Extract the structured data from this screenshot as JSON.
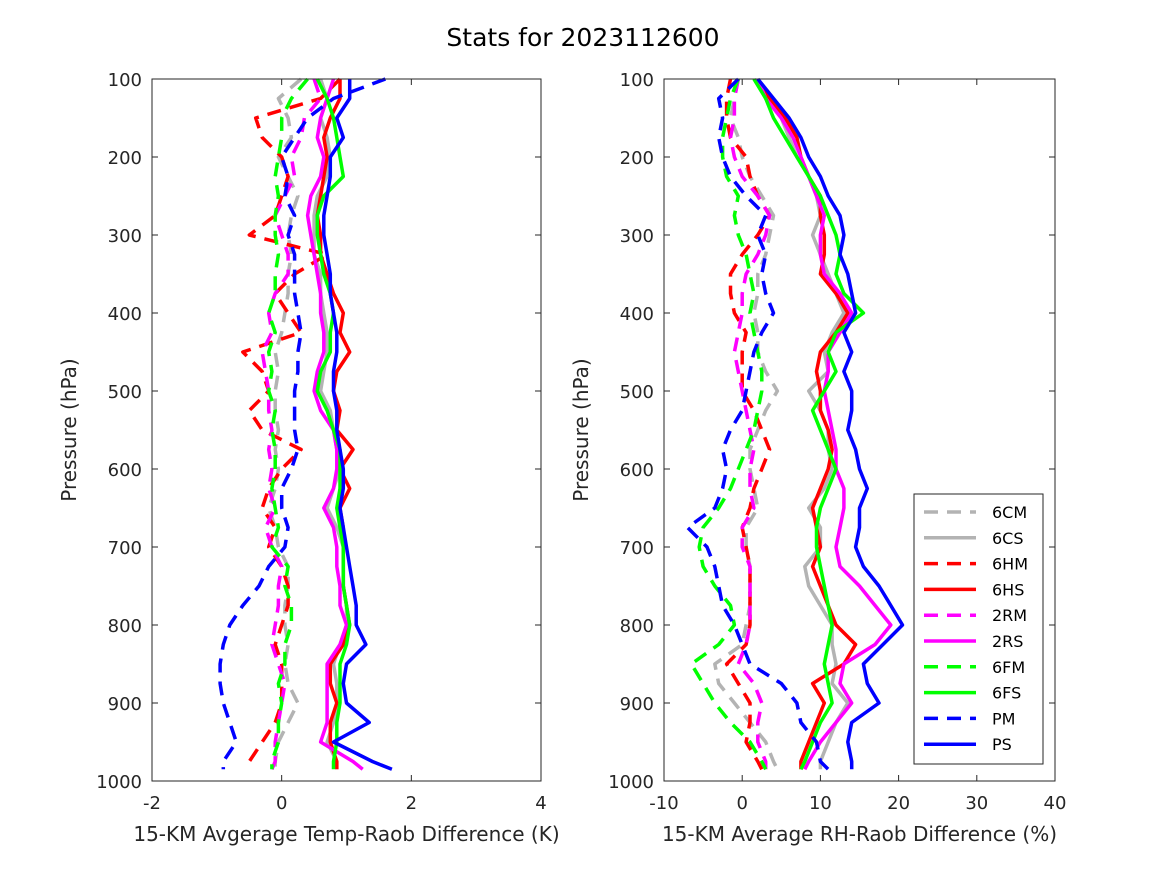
{
  "title": "Stats for 2023112600",
  "colors": {
    "6C": "#b3b3b3",
    "6H": "#ff0000",
    "2R": "#ff00ff",
    "6F": "#00ff00",
    "P": "#0000ff"
  },
  "legend": [
    {
      "label": "6CM",
      "color": "#b3b3b3",
      "style": "dashed"
    },
    {
      "label": "6CS",
      "color": "#b3b3b3",
      "style": "solid"
    },
    {
      "label": "6HM",
      "color": "#ff0000",
      "style": "dashed"
    },
    {
      "label": "6HS",
      "color": "#ff0000",
      "style": "solid"
    },
    {
      "label": "2RM",
      "color": "#ff00ff",
      "style": "dashed"
    },
    {
      "label": "2RS",
      "color": "#ff00ff",
      "style": "solid"
    },
    {
      "label": "6FM",
      "color": "#00ff00",
      "style": "dashed"
    },
    {
      "label": "6FS",
      "color": "#00ff00",
      "style": "solid"
    },
    {
      "label": "PM",
      "color": "#0000ff",
      "style": "dashed"
    },
    {
      "label": "PS",
      "color": "#0000ff",
      "style": "solid"
    }
  ],
  "chart_data": [
    {
      "type": "line",
      "ylabel": "Pressure (hPa)",
      "xlabel": "15-KM Avgerage Temp-Raob Difference (K)",
      "xlim": [
        -2,
        4
      ],
      "ylim": [
        100,
        1000
      ],
      "y_reversed": true,
      "xticks": [
        "-2",
        "0",
        "2",
        "4"
      ],
      "yticks": [
        "100",
        "200",
        "300",
        "400",
        "500",
        "600",
        "700",
        "800",
        "900",
        "1000"
      ],
      "pressure": [
        100,
        125,
        150,
        175,
        200,
        225,
        250,
        275,
        300,
        325,
        350,
        375,
        400,
        425,
        450,
        475,
        500,
        525,
        550,
        575,
        600,
        625,
        650,
        675,
        700,
        725,
        750,
        775,
        800,
        825,
        850,
        875,
        900,
        925,
        950,
        975,
        985
      ],
      "series": [
        {
          "name": "6CM",
          "values": [
            0.3,
            -0.05,
            0.1,
            0.15,
            -0.05,
            0.1,
            0.25,
            0.15,
            0.1,
            0.15,
            0.1,
            0.1,
            0.05,
            0.0,
            -0.1,
            -0.05,
            -0.1,
            -0.1,
            -0.05,
            -0.1,
            -0.05,
            -0.1,
            -0.2,
            -0.1,
            -0.05,
            0.1,
            0.1,
            0.05,
            0.05,
            0.1,
            0.05,
            0.1,
            0.25,
            0.1,
            -0.05,
            -0.1,
            -0.1
          ]
        },
        {
          "name": "6CS",
          "values": [
            0.6,
            0.7,
            0.6,
            0.7,
            0.75,
            0.7,
            0.55,
            0.5,
            0.5,
            0.5,
            0.6,
            0.6,
            0.65,
            0.7,
            0.7,
            0.65,
            0.6,
            0.75,
            0.8,
            0.85,
            0.9,
            0.8,
            0.7,
            0.85,
            0.95,
            0.95,
            0.95,
            1.0,
            1.0,
            0.9,
            0.8,
            0.85,
            0.85,
            0.8,
            0.7,
            0.85,
            0.85
          ]
        },
        {
          "name": "6HM",
          "values": [
            0.9,
            0.6,
            -0.4,
            -0.3,
            0.0,
            0.1,
            0.0,
            -0.1,
            -0.5,
            0.7,
            0.2,
            -0.1,
            0.1,
            0.3,
            -0.6,
            -0.3,
            -0.2,
            -0.5,
            -0.3,
            0.3,
            0.0,
            -0.2,
            -0.3,
            -0.1,
            -0.2,
            0.0,
            0.1,
            0.1,
            0.0,
            -0.1,
            0.0,
            0.0,
            0.0,
            -0.1,
            -0.3,
            -0.5,
            -0.5
          ]
        },
        {
          "name": "6HS",
          "values": [
            0.9,
            0.9,
            0.75,
            0.65,
            0.7,
            0.65,
            0.6,
            0.55,
            0.6,
            0.6,
            0.7,
            0.8,
            0.95,
            0.9,
            1.05,
            0.85,
            0.8,
            0.9,
            0.85,
            1.1,
            0.9,
            1.05,
            0.9,
            0.95,
            0.95,
            0.95,
            0.95,
            1.0,
            1.05,
            0.95,
            0.75,
            0.75,
            0.85,
            0.75,
            0.75,
            0.85,
            0.85
          ]
        },
        {
          "name": "2RM",
          "values": [
            0.5,
            0.6,
            0.35,
            0.3,
            0.15,
            0.2,
            0.05,
            -0.1,
            0.0,
            0.1,
            0.1,
            -0.1,
            -0.2,
            -0.15,
            -0.3,
            -0.25,
            -0.2,
            -0.2,
            -0.15,
            -0.2,
            -0.15,
            -0.2,
            -0.1,
            -0.25,
            -0.15,
            0.0,
            -0.05,
            -0.05,
            -0.1,
            -0.15,
            -0.05,
            0.05,
            0.0,
            -0.05,
            -0.1,
            -0.1,
            -0.15
          ]
        },
        {
          "name": "2RS",
          "values": [
            0.8,
            0.7,
            0.6,
            0.55,
            0.65,
            0.6,
            0.45,
            0.4,
            0.45,
            0.5,
            0.55,
            0.6,
            0.6,
            0.65,
            0.65,
            0.55,
            0.5,
            0.6,
            0.8,
            0.85,
            0.85,
            0.8,
            0.65,
            0.8,
            0.85,
            0.85,
            0.9,
            0.9,
            1.0,
            0.9,
            0.7,
            0.7,
            0.7,
            0.7,
            0.6,
            1.1,
            1.25
          ]
        },
        {
          "name": "6FM",
          "values": [
            0.4,
            0.15,
            0.0,
            0.0,
            -0.05,
            -0.1,
            -0.05,
            -0.1,
            -0.1,
            -0.05,
            -0.1,
            -0.1,
            -0.2,
            -0.1,
            -0.2,
            -0.15,
            -0.2,
            -0.1,
            -0.15,
            -0.1,
            -0.1,
            -0.15,
            -0.1,
            -0.05,
            -0.15,
            0.1,
            0.05,
            0.15,
            0.15,
            0.05,
            0.05,
            -0.05,
            0.0,
            -0.05,
            -0.05,
            -0.15,
            -0.15
          ]
        },
        {
          "name": "6FS",
          "values": [
            0.55,
            0.7,
            0.8,
            0.85,
            0.9,
            0.95,
            0.65,
            0.55,
            0.55,
            0.6,
            0.65,
            0.75,
            0.8,
            0.75,
            0.75,
            0.6,
            0.55,
            0.7,
            0.8,
            0.9,
            0.9,
            0.9,
            0.85,
            0.9,
            0.95,
            0.95,
            0.95,
            1.0,
            1.05,
            1.0,
            0.9,
            0.9,
            0.9,
            0.85,
            0.85,
            0.8,
            0.8
          ]
        },
        {
          "name": "PM",
          "values": [
            1.6,
            0.8,
            0.4,
            0.2,
            0.0,
            0.1,
            0.05,
            0.2,
            0.1,
            0.2,
            0.2,
            0.2,
            0.25,
            0.3,
            0.25,
            0.25,
            0.2,
            0.2,
            0.2,
            0.25,
            0.15,
            0.0,
            0.0,
            0.1,
            0.05,
            -0.2,
            -0.35,
            -0.6,
            -0.8,
            -0.9,
            -0.95,
            -0.95,
            -0.9,
            -0.8,
            -0.7,
            -0.9,
            -0.9
          ]
        },
        {
          "name": "PS",
          "values": [
            1.05,
            1.05,
            0.85,
            0.95,
            0.75,
            0.75,
            0.7,
            0.65,
            0.65,
            0.7,
            0.75,
            0.75,
            0.8,
            0.85,
            0.85,
            0.8,
            0.8,
            0.85,
            0.85,
            0.9,
            0.95,
            0.95,
            0.9,
            0.95,
            1.0,
            1.05,
            1.1,
            1.15,
            1.15,
            1.3,
            1.0,
            0.95,
            1.0,
            1.35,
            0.8,
            1.4,
            1.7
          ]
        }
      ]
    },
    {
      "type": "line",
      "ylabel": "Pressure (hPa)",
      "xlabel": "15-KM Average RH-Raob Difference (%)",
      "xlim": [
        -10,
        40
      ],
      "ylim": [
        100,
        1000
      ],
      "y_reversed": true,
      "xticks": [
        "-10",
        "0",
        "10",
        "20",
        "30",
        "40"
      ],
      "yticks": [
        "100",
        "200",
        "300",
        "400",
        "500",
        "600",
        "700",
        "800",
        "900",
        "1000"
      ],
      "legend_position": "bottom-right",
      "pressure": [
        100,
        125,
        150,
        175,
        200,
        225,
        250,
        275,
        300,
        325,
        350,
        375,
        400,
        425,
        450,
        475,
        500,
        525,
        550,
        575,
        600,
        625,
        650,
        675,
        700,
        725,
        750,
        775,
        800,
        825,
        850,
        875,
        900,
        925,
        950,
        975,
        985
      ],
      "series": [
        {
          "name": "6CM",
          "values": [
            -0.5,
            -1.0,
            -1.5,
            -0.5,
            0.0,
            1.0,
            2.5,
            4.0,
            3.5,
            3.0,
            2.0,
            2.0,
            1.5,
            2.0,
            2.0,
            3.0,
            4.5,
            3.0,
            2.0,
            1.0,
            1.0,
            1.5,
            2.0,
            0.5,
            0.5,
            1.0,
            1.0,
            1.0,
            0.5,
            0.0,
            -3.5,
            -3.0,
            -1.0,
            1.0,
            3.0,
            4.0,
            4.5
          ]
        },
        {
          "name": "6CS",
          "values": [
            2.0,
            3.0,
            5.0,
            6.0,
            7.0,
            8.5,
            9.5,
            10.0,
            9.0,
            10.0,
            11.0,
            12.0,
            13.0,
            11.5,
            10.5,
            11.0,
            8.5,
            10.0,
            11.0,
            11.0,
            11.5,
            10.5,
            8.5,
            10.0,
            10.0,
            8.0,
            8.5,
            10.0,
            11.5,
            11.5,
            12.0,
            11.5,
            13.5,
            12.0,
            11.0,
            10.0,
            10.0
          ]
        },
        {
          "name": "6HM",
          "values": [
            -1.5,
            -2.0,
            -2.0,
            -1.5,
            0.5,
            1.0,
            2.0,
            3.5,
            2.0,
            0.0,
            -1.5,
            -1.5,
            -1.0,
            0.5,
            0.0,
            0.0,
            0.0,
            1.5,
            2.5,
            3.5,
            2.5,
            1.5,
            1.0,
            0.0,
            0.5,
            1.0,
            1.0,
            1.0,
            1.0,
            0.5,
            -2.0,
            -0.5,
            1.0,
            1.0,
            0.5,
            2.0,
            2.5
          ]
        },
        {
          "name": "6HS",
          "values": [
            2.0,
            3.5,
            5.5,
            7.0,
            7.5,
            8.5,
            10.0,
            10.0,
            10.5,
            10.5,
            10.0,
            12.0,
            13.5,
            12.0,
            10.0,
            9.5,
            10.0,
            10.0,
            11.0,
            11.5,
            11.0,
            10.0,
            9.0,
            9.5,
            10.0,
            9.0,
            10.0,
            11.0,
            12.0,
            14.5,
            13.0,
            9.0,
            10.5,
            9.5,
            8.5,
            7.5,
            7.5
          ]
        },
        {
          "name": "2RM",
          "values": [
            -0.5,
            -1.0,
            -1.0,
            -1.5,
            -1.0,
            0.0,
            2.0,
            3.5,
            3.0,
            2.0,
            0.5,
            0.0,
            0.0,
            -0.5,
            -1.0,
            -0.5,
            0.0,
            0.5,
            1.0,
            1.5,
            1.0,
            1.0,
            1.5,
            0.0,
            0.0,
            1.0,
            1.0,
            1.0,
            1.0,
            0.5,
            -0.5,
            1.5,
            2.5,
            2.0,
            2.0,
            3.0,
            3.0
          ]
        },
        {
          "name": "2RS",
          "values": [
            2.0,
            3.0,
            5.0,
            6.5,
            7.5,
            8.5,
            9.5,
            10.5,
            10.0,
            10.0,
            10.5,
            12.5,
            14.0,
            12.5,
            11.0,
            11.0,
            10.5,
            11.0,
            11.5,
            12.0,
            12.0,
            13.0,
            13.0,
            12.5,
            12.0,
            12.5,
            15.0,
            17.0,
            19.0,
            17.0,
            13.0,
            12.5,
            14.0,
            12.0,
            10.0,
            8.5,
            8.0
          ]
        },
        {
          "name": "6FM",
          "values": [
            -0.5,
            -1.5,
            -2.0,
            -2.5,
            -2.5,
            -2.0,
            -0.5,
            -1.0,
            -0.5,
            0.5,
            1.0,
            1.5,
            1.0,
            1.5,
            2.0,
            2.5,
            2.5,
            2.0,
            1.5,
            0.5,
            -0.5,
            -1.5,
            -3.0,
            -5.0,
            -5.5,
            -5.0,
            -3.5,
            -1.5,
            -1.0,
            -3.0,
            -6.5,
            -5.0,
            -3.5,
            -1.5,
            1.0,
            2.5,
            3.0
          ]
        },
        {
          "name": "6FS",
          "values": [
            1.5,
            3.0,
            4.0,
            5.5,
            7.0,
            8.5,
            10.0,
            11.0,
            12.0,
            12.5,
            12.0,
            13.0,
            15.5,
            12.0,
            11.0,
            12.0,
            10.5,
            9.0,
            10.0,
            11.0,
            12.0,
            11.0,
            10.0,
            9.5,
            9.5,
            10.0,
            10.5,
            11.0,
            11.5,
            11.0,
            10.5,
            11.0,
            11.5,
            10.0,
            9.0,
            8.0,
            7.5
          ]
        },
        {
          "name": "PM",
          "values": [
            -0.5,
            -3.0,
            -2.5,
            -3.0,
            -2.5,
            -1.5,
            0.5,
            3.0,
            2.0,
            3.0,
            2.5,
            3.0,
            4.0,
            2.5,
            1.5,
            1.0,
            0.5,
            0.0,
            -1.5,
            -2.5,
            -2.0,
            -2.5,
            -3.5,
            -7.0,
            -4.5,
            -3.5,
            -3.0,
            -2.5,
            -1.0,
            0.0,
            1.0,
            5.0,
            7.0,
            7.5,
            9.5,
            10.0,
            11.0
          ]
        },
        {
          "name": "PS",
          "values": [
            2.0,
            4.0,
            6.0,
            7.5,
            8.5,
            10.0,
            11.0,
            12.5,
            13.0,
            12.5,
            13.5,
            14.0,
            14.5,
            13.0,
            14.0,
            13.0,
            14.0,
            14.0,
            13.5,
            14.5,
            15.0,
            16.0,
            15.0,
            15.0,
            14.5,
            15.5,
            17.5,
            19.0,
            20.5,
            18.0,
            15.5,
            16.0,
            17.5,
            14.0,
            13.5,
            14.0,
            14.0
          ]
        }
      ]
    }
  ]
}
